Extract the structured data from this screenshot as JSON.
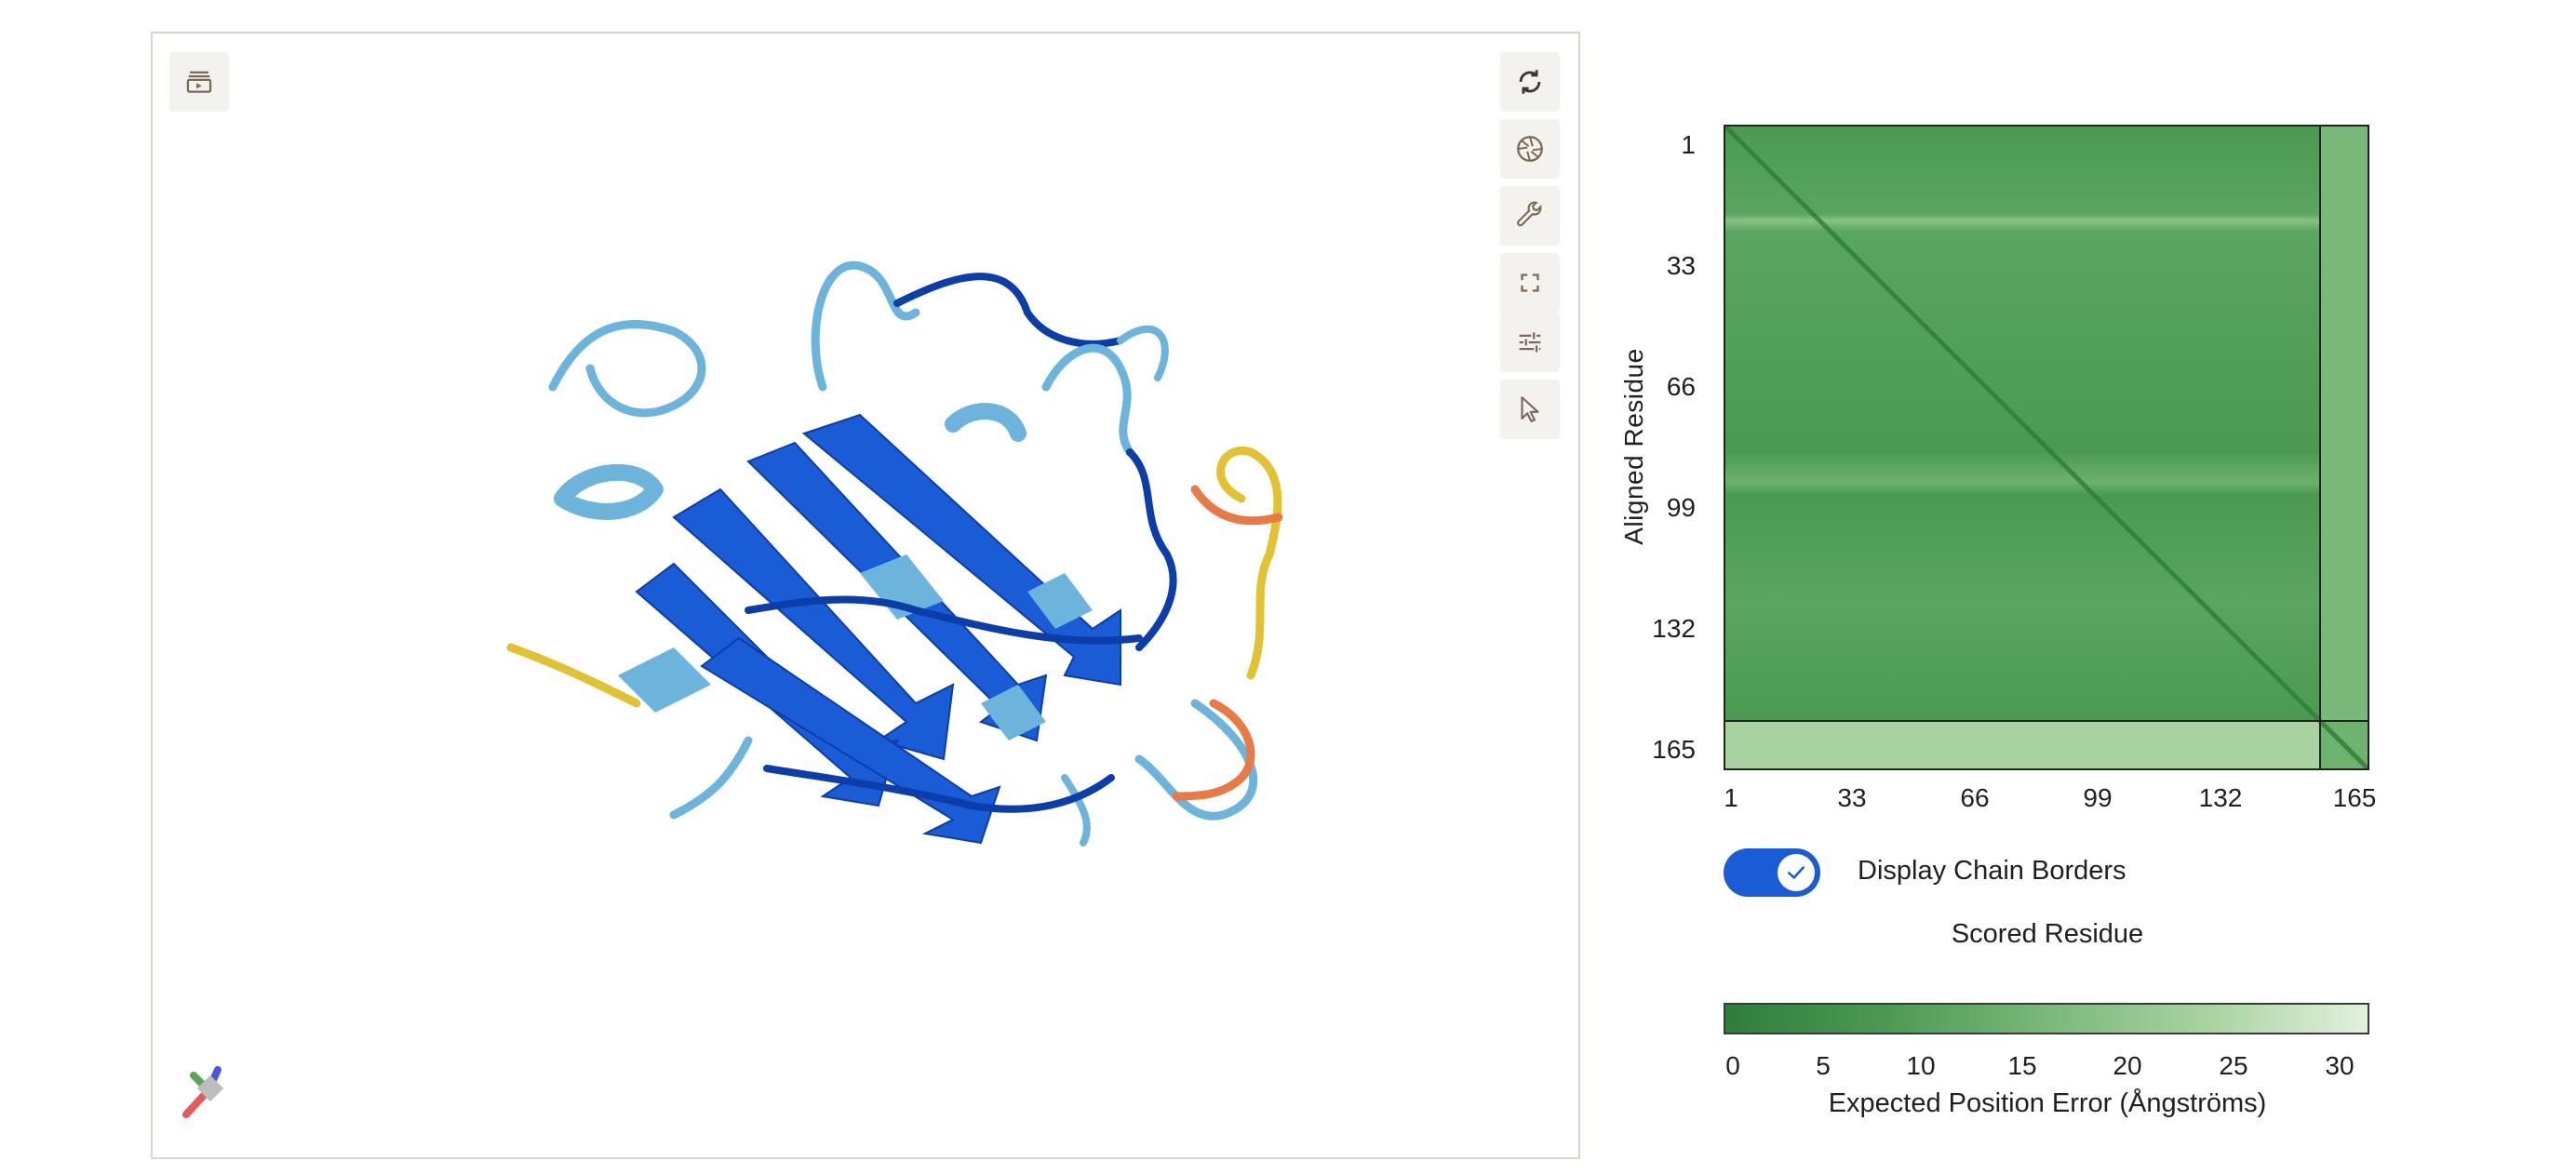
{
  "viewer": {
    "toolbar": [
      {
        "name": "animation-toggle-icon"
      },
      {
        "name": "reset-view-icon"
      },
      {
        "name": "screenshot-icon"
      },
      {
        "name": "tools-icon"
      },
      {
        "name": "fullscreen-icon"
      },
      {
        "name": "settings-sliders-icon"
      },
      {
        "name": "select-pointer-icon"
      }
    ],
    "colors": {
      "very_high": "#0b3ea8",
      "confident": "#1a5bd6",
      "low": "#6cb4dc",
      "very_low_yellow": "#e2c232",
      "very_low_orange": "#e87a45"
    }
  },
  "pae": {
    "ylabel": "Aligned Residue",
    "xlabel": "Scored Residue",
    "yticks": [
      "1",
      "33",
      "66",
      "99",
      "132",
      "165"
    ],
    "xticks": [
      "1",
      "33",
      "66",
      "99",
      "132",
      "165"
    ],
    "toggle_label": "Display Chain Borders",
    "toggle_checked": true,
    "colorbar_title": "Expected Position Error (Ångströms)",
    "colorbar_ticks": [
      "0",
      "5",
      "10",
      "15",
      "20",
      "25",
      "30"
    ],
    "colors": {
      "low": "#2e7d3a",
      "high": "#e2f1dd",
      "border": "#222222"
    }
  },
  "chart_data": {
    "type": "heatmap",
    "title": "",
    "xlabel": "Scored Residue",
    "ylabel": "Aligned Residue",
    "x_ticks": [
      1,
      33,
      66,
      99,
      132,
      165
    ],
    "y_ticks": [
      1,
      33,
      66,
      99,
      132,
      165
    ],
    "xlim": [
      1,
      171
    ],
    "ylim": [
      1,
      171
    ],
    "chain_border_at_residue": 159,
    "color_scale": {
      "min": 0,
      "max": 30,
      "unit": "Ångströms",
      "ticks": [
        0,
        5,
        10,
        15,
        20,
        25,
        30
      ]
    },
    "regions": [
      {
        "rows": [
          1,
          159
        ],
        "cols": [
          1,
          159
        ],
        "approx_error": 8
      },
      {
        "rows": [
          1,
          159
        ],
        "cols": [
          159,
          171
        ],
        "approx_error": 14
      },
      {
        "rows": [
          159,
          171
        ],
        "cols": [
          1,
          159
        ],
        "approx_error": 20
      },
      {
        "rows": [
          159,
          171
        ],
        "cols": [
          159,
          171
        ],
        "approx_error": 10
      },
      {
        "diagonal": true,
        "approx_error": 2
      }
    ]
  }
}
